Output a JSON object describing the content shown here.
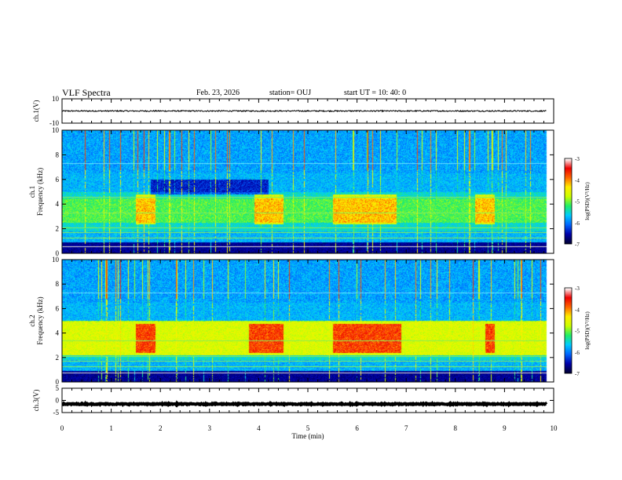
{
  "header": {
    "title": "VLF Spectra",
    "date": "Feb. 23, 2026",
    "station": "station= OUJ",
    "start": "start  UT =   10: 40: 0"
  },
  "colorbar": {
    "label": "log(PSD)(V²/Hz)",
    "ticks": [
      "-3",
      "-4",
      "-5",
      "-6",
      "-7"
    ],
    "range": [
      -7,
      -3
    ],
    "colors": [
      "#000033",
      "#0000aa",
      "#0066ff",
      "#00ccff",
      "#22ee66",
      "#ccff00",
      "#ffee00",
      "#ff6600",
      "#ee0000",
      "#ffffff"
    ]
  },
  "chart_data": [
    {
      "type": "line",
      "name": "ch.1 waveform",
      "ylabel": "ch.1(V)",
      "ylim": [
        -10,
        10
      ],
      "yticks": [
        "10",
        "-10"
      ],
      "x_range_min": [
        0,
        9.85
      ],
      "approx_level": 0,
      "approx_amplitude": 0.5,
      "color": "#000000"
    },
    {
      "type": "heatmap",
      "name": "ch.1 spectrogram",
      "ylabel": "ch.1\nFrequency (kHz)",
      "ylim": [
        0,
        10
      ],
      "yticks": [
        "0",
        "2",
        "4",
        "6",
        "8",
        "10"
      ],
      "x_range_min": [
        0,
        9.85
      ],
      "features": {
        "dark_band_kHz": [
          4.8,
          6.0
        ],
        "dark_band_time_min": [
          1.8,
          4.2
        ],
        "emission_band_kHz": [
          2.5,
          4.5
        ],
        "enhanced_intervals_min": [
          [
            1.5,
            1.9
          ],
          [
            3.9,
            4.5
          ],
          [
            5.5,
            6.8
          ],
          [
            8.4,
            8.8
          ]
        ],
        "lines_kHz": [
          0.55,
          1.3,
          1.7,
          2.1,
          3.3,
          4.6,
          7.3
        ]
      }
    },
    {
      "type": "heatmap",
      "name": "ch.2 spectrogram",
      "ylabel": "ch.2\nFrequency (kHz)",
      "ylim": [
        0,
        10
      ],
      "yticks": [
        "0",
        "2",
        "4",
        "6",
        "8",
        "10"
      ],
      "x_range_min": [
        0,
        9.85
      ],
      "features": {
        "emission_band_kHz": [
          2.2,
          5.0
        ],
        "enhanced_intervals_min": [
          [
            1.5,
            1.9
          ],
          [
            3.8,
            4.5
          ],
          [
            5.5,
            6.9
          ],
          [
            8.6,
            8.8
          ]
        ],
        "lines_kHz": [
          0.8,
          1.3,
          1.7,
          2.1,
          3.4,
          7.3
        ]
      }
    },
    {
      "type": "line",
      "name": "ch.3 waveform",
      "ylabel": "ch.3(V)",
      "ylim": [
        -5,
        5
      ],
      "yticks": [
        "5",
        "0",
        "-5"
      ],
      "x_range_min": [
        0,
        9.85
      ],
      "approx_level": -1.5,
      "approx_amplitude": 0.2,
      "color": "#000000"
    }
  ],
  "xaxis": {
    "label": "Time (min)",
    "range": [
      0,
      10
    ],
    "ticks": [
      "0",
      "1",
      "2",
      "3",
      "4",
      "5",
      "6",
      "7",
      "8",
      "9",
      "10"
    ]
  }
}
